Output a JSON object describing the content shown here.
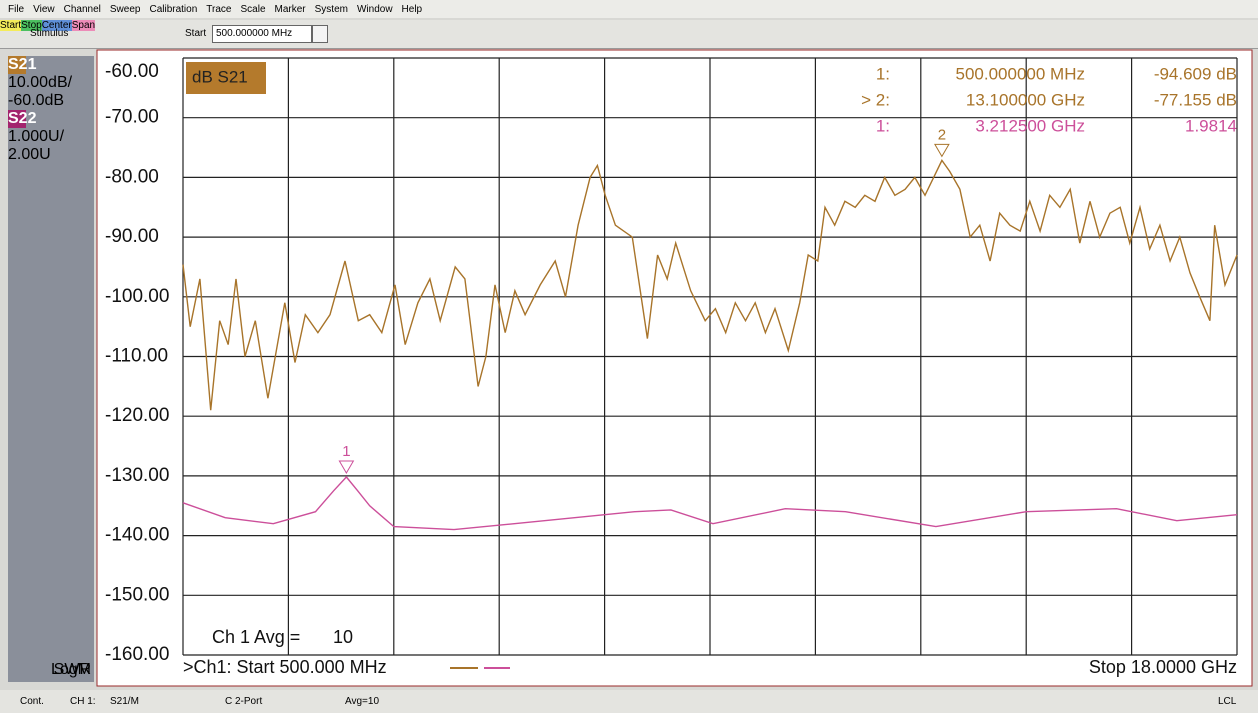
{
  "menu": [
    "File",
    "View",
    "Channel",
    "Sweep",
    "Calibration",
    "Trace",
    "Scale",
    "Marker",
    "System",
    "Window",
    "Help"
  ],
  "toolbar": {
    "group": "Stimulus",
    "field_label": "Start",
    "field_value": "500.000000 MHz",
    "buttons": [
      "Start",
      "Stop",
      "Center",
      "Span"
    ]
  },
  "traces_panel": [
    {
      "name": "S21",
      "scale": "10.00dB/",
      "ref": "-60.0dB",
      "format": "LogM"
    },
    {
      "name": "S22",
      "scale": "1.000U/",
      "ref": "2.00U",
      "format": "SWR"
    }
  ],
  "chart_data": {
    "type": "line",
    "title": "dB S21",
    "xlim": [
      0.5,
      18
    ],
    "ylim": [
      -60,
      -160
    ],
    "y2lim": [
      9,
      -1
    ],
    "yticks": [
      {
        "value": -60,
        "label": "-60.00"
      },
      {
        "value": -70,
        "label": "-70.00"
      },
      {
        "value": -80,
        "label": "-80.00"
      },
      {
        "value": -90,
        "label": "-90.00"
      },
      {
        "value": -100,
        "label": "-100.00"
      },
      {
        "value": -110,
        "label": "-110.00"
      },
      {
        "value": -120,
        "label": "-120.00"
      },
      {
        "value": -130,
        "label": "-130.00"
      },
      {
        "value": -140,
        "label": "-140.00"
      },
      {
        "value": -150,
        "label": "-150.00"
      },
      {
        "value": -160,
        "label": "-160.00"
      }
    ],
    "grid": true,
    "series": [
      {
        "name": "S21",
        "color": "#a8742a",
        "x": [
          0.5,
          0.62,
          0.78,
          0.96,
          1.11,
          1.25,
          1.38,
          1.53,
          1.7,
          1.91,
          2.19,
          2.36,
          2.53,
          2.74,
          2.94,
          3.19,
          3.41,
          3.6,
          3.8,
          4.02,
          4.19,
          4.4,
          4.6,
          4.77,
          5.02,
          5.18,
          5.4,
          5.53,
          5.68,
          5.85,
          6.01,
          6.18,
          6.43,
          6.68,
          6.85,
          7.06,
          7.26,
          7.38,
          7.51,
          7.68,
          7.96,
          8.21,
          8.38,
          8.54,
          8.68,
          8.93,
          9.17,
          9.34,
          9.51,
          9.67,
          9.84,
          10.0,
          10.17,
          10.33,
          10.55,
          10.74,
          10.88,
          11.04,
          11.16,
          11.32,
          11.49,
          11.66,
          11.82,
          11.99,
          12.15,
          12.32,
          12.49,
          12.65,
          12.82,
          13.1,
          13.23,
          13.4,
          13.57,
          13.73,
          13.9,
          14.06,
          14.23,
          14.4,
          14.56,
          14.73,
          14.89,
          15.06,
          15.23,
          15.39,
          15.56,
          15.72,
          15.89,
          16.06,
          16.22,
          16.39,
          16.55,
          16.72,
          16.89,
          17.05,
          17.22,
          17.38,
          17.55,
          17.63,
          17.8,
          18.0
        ],
        "values": [
          -94.6,
          -105,
          -97,
          -119,
          -104,
          -108,
          -97,
          -110,
          -104,
          -117,
          -101,
          -111,
          -103,
          -106,
          -103,
          -94,
          -104,
          -103,
          -106,
          -98,
          -108,
          -101,
          -97,
          -104,
          -95,
          -97,
          -115,
          -110,
          -98,
          -106,
          -99,
          -103,
          -98,
          -94,
          -100,
          -88,
          -80,
          -78,
          -83,
          -88,
          -90,
          -107,
          -93,
          -97,
          -91,
          -99,
          -104,
          -102,
          -106,
          -101,
          -104,
          -101,
          -106,
          -102,
          -109,
          -101,
          -93,
          -94,
          -85,
          -88,
          -84,
          -85,
          -83,
          -84,
          -80,
          -83,
          -82,
          -80,
          -83,
          -77.155,
          -79,
          -82,
          -90,
          -88,
          -94,
          -86,
          -88,
          -89,
          -84,
          -89,
          -83,
          -85,
          -82,
          -91,
          -84,
          -90,
          -86,
          -85,
          -91,
          -85,
          -92,
          -88,
          -94,
          -90,
          -96,
          -100,
          -104,
          -88,
          -98,
          -93
        ]
      },
      {
        "name": "S22",
        "color": "#cc4f9a",
        "axis": "y2",
        "x": [
          0.5,
          1.2,
          2.0,
          2.7,
          3.0,
          3.2125,
          3.4,
          3.6,
          4.0,
          5.0,
          6.0,
          7.0,
          8.0,
          8.6,
          9.3,
          10.5,
          11.5,
          13.0,
          14.5,
          16.0,
          17.0,
          18.0
        ],
        "values": [
          1.55,
          1.3,
          1.2,
          1.4,
          1.75,
          1.9814,
          1.75,
          1.5,
          1.15,
          1.1,
          1.2,
          1.3,
          1.4,
          1.43,
          1.2,
          1.45,
          1.4,
          1.15,
          1.4,
          1.45,
          1.25,
          1.35
        ]
      }
    ],
    "marker_labels": [
      "1",
      "2"
    ],
    "readout": [
      [
        "1:",
        "500.000000 MHz",
        "-94.609 dB"
      ],
      [
        "> 2:",
        "13.100000 GHz",
        "-77.155 dB"
      ],
      [
        "1:",
        "3.212500 GHz",
        "1.9814"
      ]
    ],
    "avg_label": "Ch 1 Avg =",
    "avg_value": "10",
    "start_label": ">Ch1: Start  500.000 MHz",
    "stop_label": "Stop  18.0000 GHz"
  },
  "status_bar": [
    "Cont.",
    "CH 1:",
    "S21/M",
    "C 2-Port",
    "Avg=10",
    "LCL"
  ]
}
